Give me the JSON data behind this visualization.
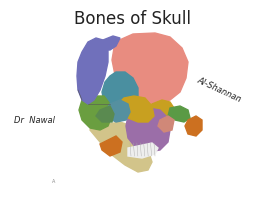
{
  "title": "Bones of Skull",
  "title_fontsize": 12,
  "title_fontweight": "normal",
  "label_left": "Dr  Nawal",
  "label_right": "Al-Shannan",
  "bg_color": "#ffffff",
  "title_color": "#222222",
  "label_color": "#222222",
  "label_fontsize": 6.0,
  "figsize": [
    2.64,
    1.98
  ],
  "dpi": 100,
  "colors": {
    "parietal": "#E88C80",
    "temporal_purple": "#7070BB",
    "frontal_teal": "#4A8FA0",
    "sphenoid_yellow": "#C8A020",
    "zygomatic_green": "#6A9E40",
    "maxilla_purple": "#9B6EA8",
    "mandible_beige": "#D2C48A",
    "nasal_green": "#5A8A50",
    "lacrimal_teal": "#3A8888",
    "temporal_green_r": "#5A9A45",
    "styloid_orange": "#CC7020",
    "mental_orange": "#CC7020",
    "nasal_pink": "#D08878",
    "teeth": "#EEEEEE",
    "orbit_blue": "#5590A0"
  }
}
